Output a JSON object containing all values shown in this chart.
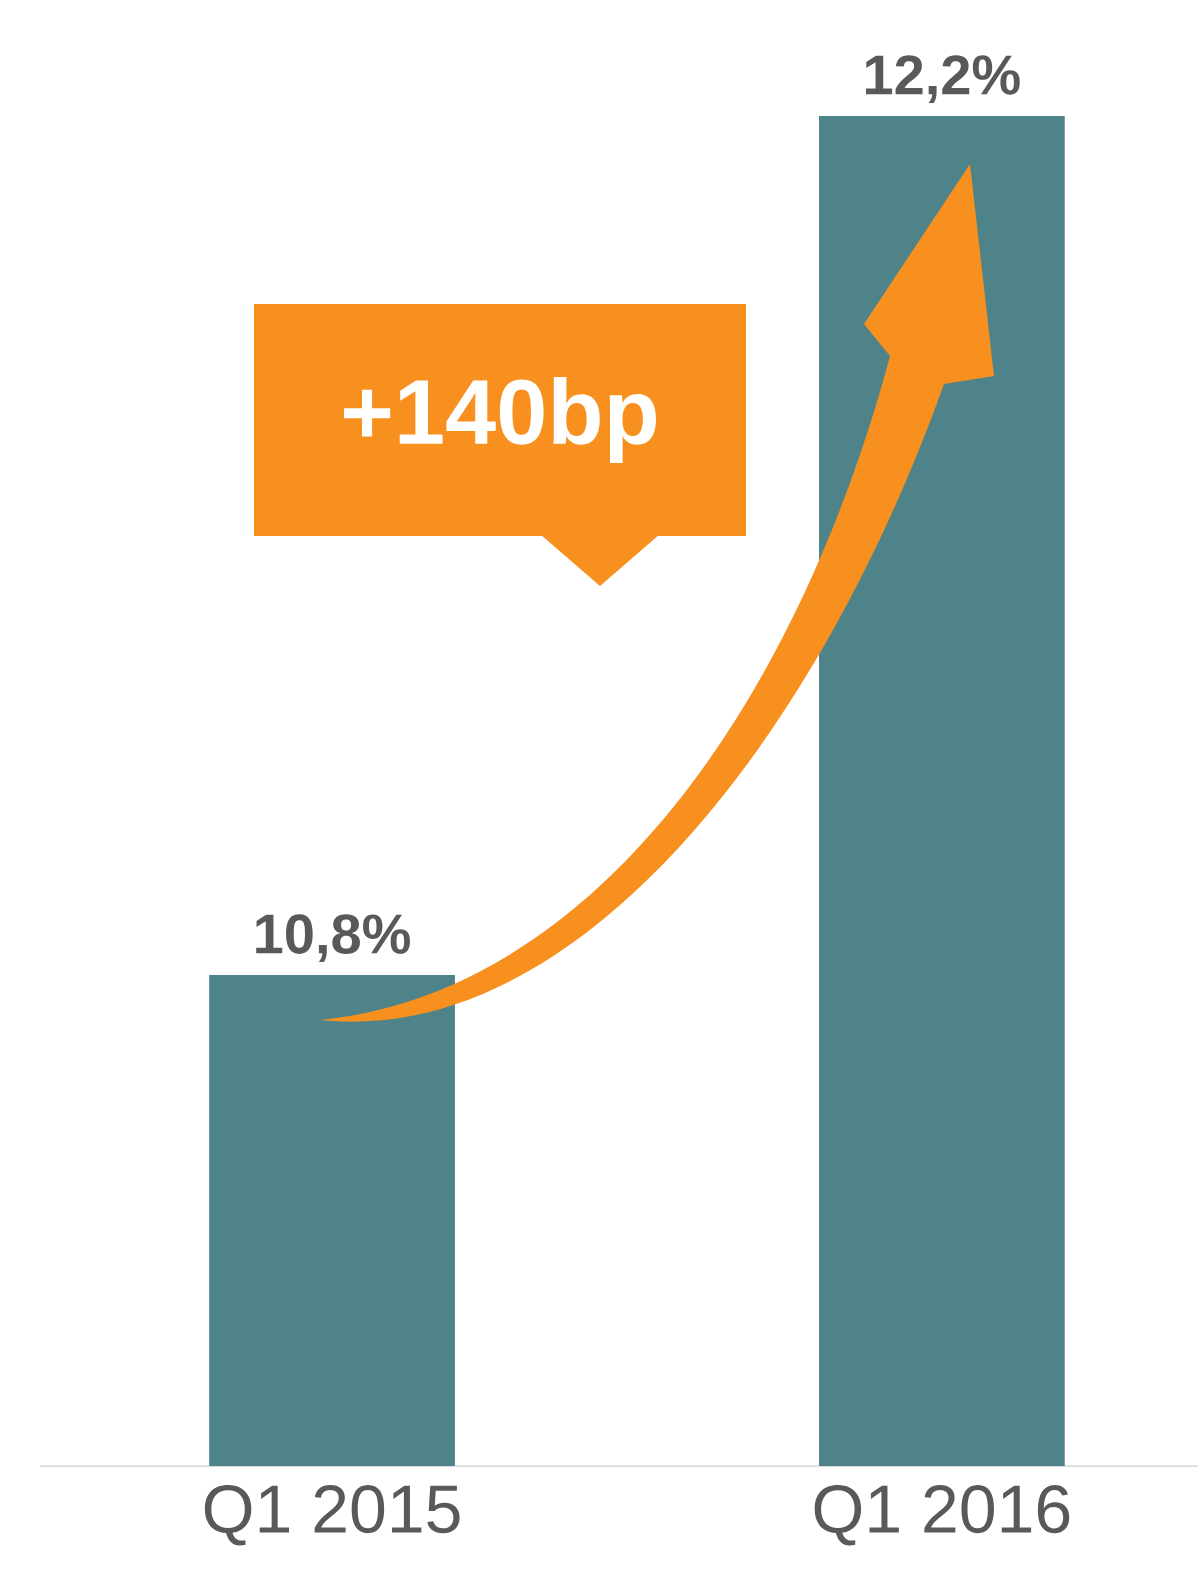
{
  "chart_data": {
    "type": "bar",
    "categories": [
      "Q1 2015",
      "Q1 2016"
    ],
    "values": [
      10.8,
      12.2
    ],
    "value_labels": [
      "10,8%",
      "12,2%"
    ],
    "color": "#4e838a",
    "ylim": [
      10,
      12.2
    ],
    "tick_labels": "x",
    "annotations": [
      "+140bp"
    ]
  }
}
